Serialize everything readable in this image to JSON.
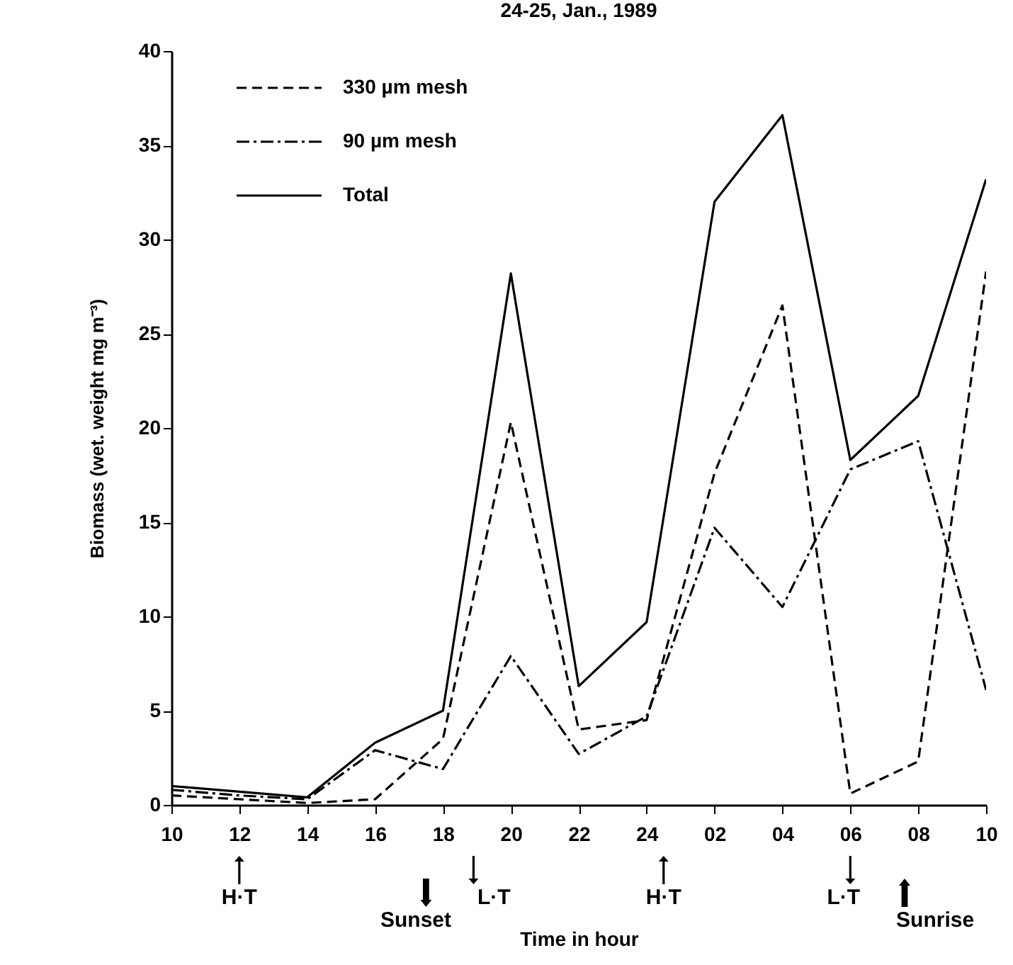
{
  "chart_data": {
    "type": "line",
    "title": "24-25, Jan., 1989",
    "xlabel": "Time    in    hour",
    "ylabel": "Biomass (wet. weight mg m⁻³)",
    "categories": [
      "10",
      "12",
      "14",
      "16",
      "18",
      "20",
      "22",
      "24",
      "02",
      "04",
      "06",
      "08",
      "10"
    ],
    "ylim": [
      0,
      40
    ],
    "yticks": [
      0,
      5,
      10,
      15,
      20,
      25,
      30,
      35,
      40
    ],
    "series": [
      {
        "name": "330 µm mesh",
        "color": "#000000",
        "line_style": "dashed",
        "values": [
          0.5,
          0.3,
          0.1,
          0.3,
          3.5,
          20.3,
          4.0,
          4.5,
          17.6,
          26.5,
          0.6,
          2.3,
          28.3
        ]
      },
      {
        "name": "90 µm mesh",
        "color": "#000000",
        "line_style": "dashdot",
        "values": [
          0.8,
          0.5,
          0.3,
          2.9,
          1.9,
          7.9,
          2.7,
          4.7,
          14.7,
          10.5,
          17.8,
          19.3,
          6.1
        ]
      },
      {
        "name": "Total",
        "color": "#000000",
        "line_style": "solid",
        "values": [
          1.0,
          0.7,
          0.4,
          3.3,
          5.0,
          28.2,
          6.3,
          9.7,
          32.0,
          36.6,
          18.3,
          21.7,
          33.2
        ]
      }
    ],
    "annotations": [
      "H·T",
      "Sunset",
      "L·T",
      "H·T",
      "L·T",
      "Sunrise"
    ],
    "legend": "top left",
    "grid": false,
    "marker": "none"
  }
}
